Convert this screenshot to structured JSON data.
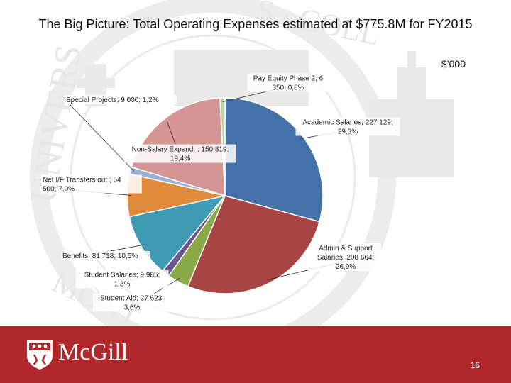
{
  "slide": {
    "title": "The Big Picture:  Total Operating Expenses estimated at $775.8M for FY2015",
    "unit": "$’000",
    "brand": "McGill",
    "page_number": "16"
  },
  "seal": {
    "left_text": "UNIVERS",
    "bottom_text": "MONT",
    "top_text": "S · COLL"
  },
  "chart_data": {
    "type": "pie",
    "title": "",
    "slices": [
      {
        "label": "Academic Salaries; 227 129; 29,3%",
        "value": 227129,
        "percent": 29.3,
        "color": "#4472a8"
      },
      {
        "label": "Admin & Support Salaries; 208 664; 26,9%",
        "value": 208664,
        "percent": 26.9,
        "color": "#a64544"
      },
      {
        "label": "Student Aid; 27 623; 3,6%",
        "value": 27623,
        "percent": 3.6,
        "color": "#8aaa4a"
      },
      {
        "label": "Student Salaries; 9 985; 1,3%",
        "value": 9985,
        "percent": 1.3,
        "color": "#6e5591"
      },
      {
        "label": "Benefits; 81 718; 10,5%",
        "value": 81718,
        "percent": 10.5,
        "color": "#3f9bb4"
      },
      {
        "label": "Net I/F Transfers out ; 54 500; 7,0%",
        "value": 54500,
        "percent": 7.0,
        "color": "#e08a3c"
      },
      {
        "label": "Special Projects; 9 000; 1,2%",
        "value": 9000,
        "percent": 1.2,
        "color": "#9bb2d6"
      },
      {
        "label": "Non-Salary Expend. ; 150 819; 19,4%",
        "value": 150819,
        "percent": 19.4,
        "color": "#d49594"
      },
      {
        "label": "Pay Equity Phase 2; 6 350; 0,8%",
        "value": 6350,
        "percent": 0.8,
        "color": "#c2d49a"
      }
    ]
  }
}
